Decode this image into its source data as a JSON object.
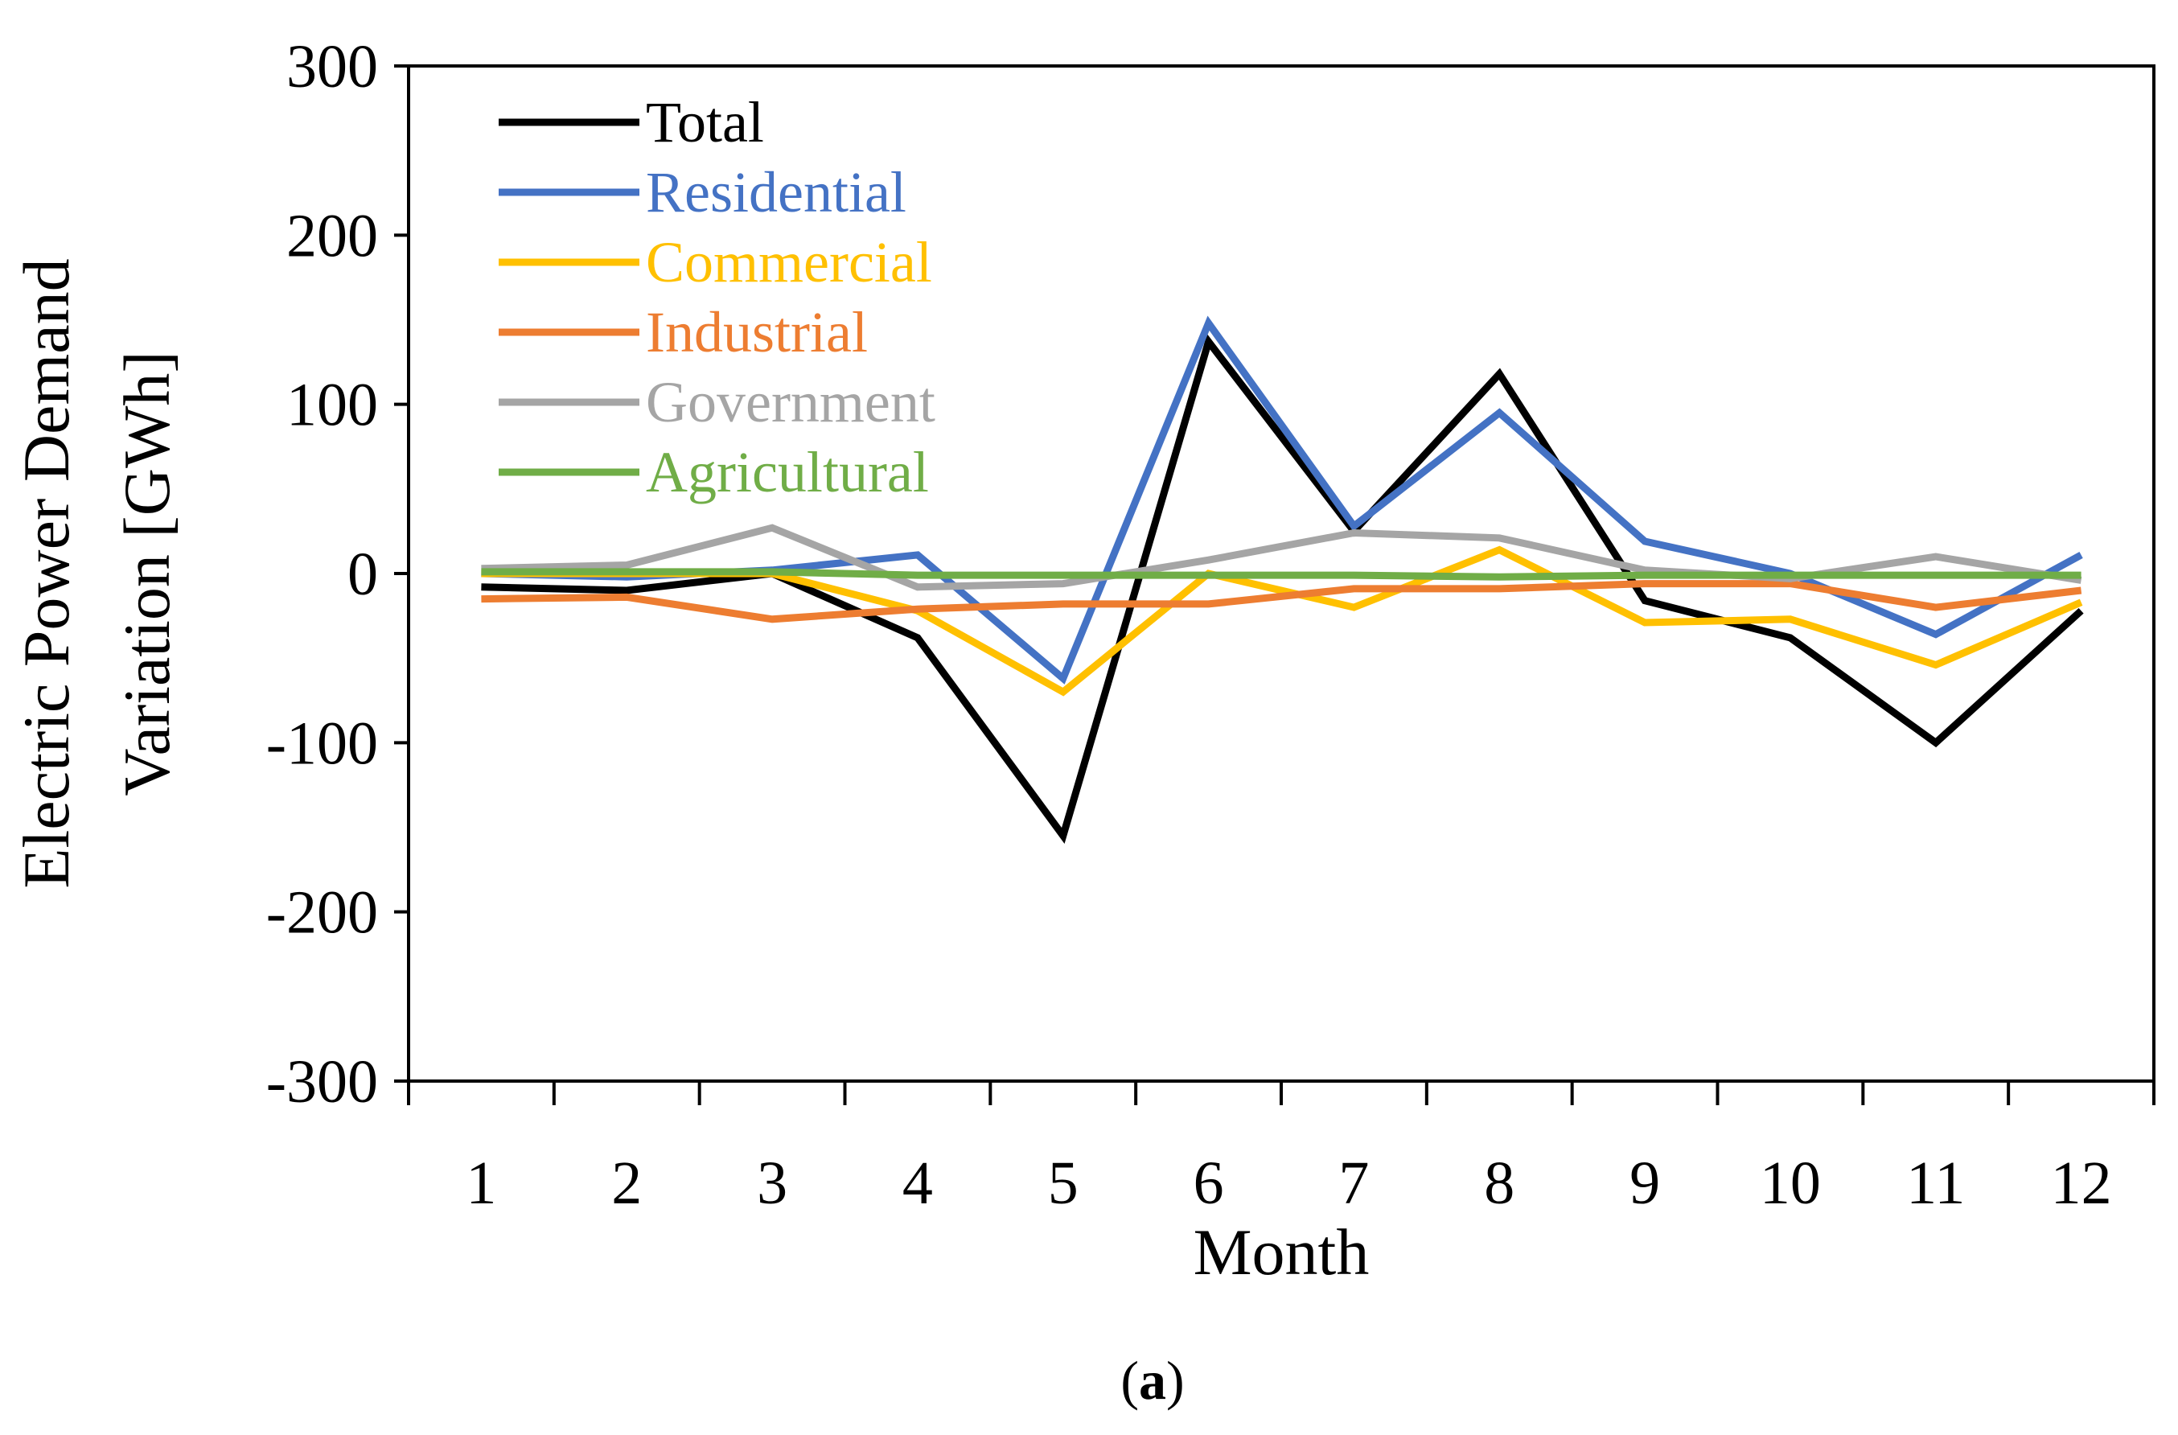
{
  "chart_data": {
    "type": "line",
    "title": "",
    "xlabel": "Month",
    "ylabel_line1": "Electric Power Demand",
    "ylabel_line2": "Variation [GWh]",
    "caption_open": "(",
    "caption_letter": "a",
    "caption_close": ")",
    "categories": [
      "1",
      "2",
      "3",
      "4",
      "5",
      "6",
      "7",
      "8",
      "9",
      "10",
      "11",
      "12"
    ],
    "ylim": [
      -300,
      300
    ],
    "yticks": [
      -300,
      -200,
      -100,
      0,
      100,
      200,
      300
    ],
    "ytick_labels": [
      "-300",
      "-200",
      "-100",
      "0",
      "100",
      "200",
      "300"
    ],
    "grid": false,
    "legend_position": "top-left",
    "series": [
      {
        "name": "Total",
        "color": "#000000",
        "label_color": "#000000",
        "values": [
          -8,
          -10,
          0,
          -38,
          -155,
          137,
          25,
          118,
          -16,
          -38,
          -100,
          -22
        ]
      },
      {
        "name": "Residential",
        "color": "#4472C4",
        "label_color": "#4472C4",
        "values": [
          0,
          -2,
          2,
          11,
          -62,
          148,
          28,
          95,
          19,
          0,
          -36,
          11
        ]
      },
      {
        "name": "Commercial",
        "color": "#FFC000",
        "label_color": "#FFC000",
        "values": [
          0,
          0,
          0,
          -22,
          -70,
          0,
          -20,
          14,
          -29,
          -27,
          -54,
          -17
        ]
      },
      {
        "name": "Industrial",
        "color": "#ED7D31",
        "label_color": "#ED7D31",
        "values": [
          -15,
          -14,
          -27,
          -21,
          -18,
          -18,
          -9,
          -9,
          -6,
          -6,
          -20,
          -10
        ]
      },
      {
        "name": "Government",
        "color": "#A5A5A5",
        "label_color": "#A5A5A5",
        "values": [
          3,
          5,
          27,
          -8,
          -6,
          8,
          24,
          21,
          2,
          -3,
          10,
          -4
        ]
      },
      {
        "name": "Agricultural",
        "color": "#70AD47",
        "label_color": "#70AD47",
        "values": [
          1,
          1,
          1,
          -1,
          -1,
          -1,
          -1,
          -2,
          -1,
          -1,
          -1,
          -1
        ]
      }
    ]
  }
}
